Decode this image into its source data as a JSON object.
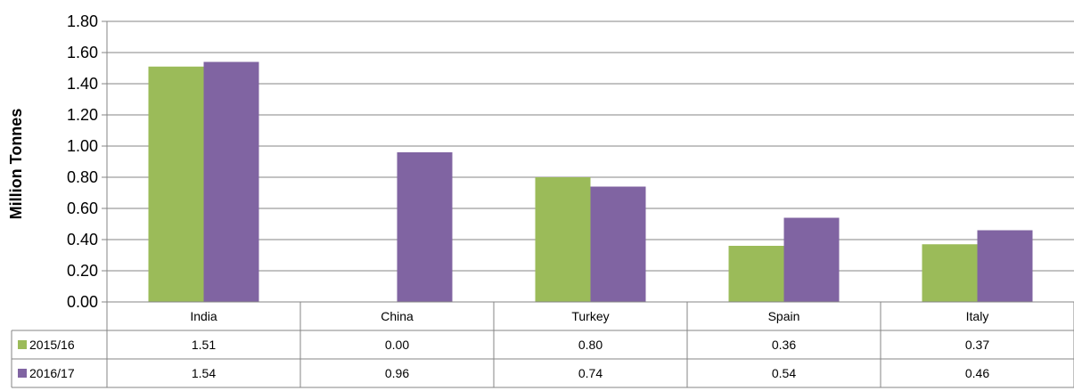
{
  "chart_data": {
    "type": "bar",
    "title": "",
    "xlabel": "",
    "ylabel": "Million Tonnes",
    "ylim": [
      0,
      1.8
    ],
    "yticks": [
      "0.00",
      "0.20",
      "0.40",
      "0.60",
      "0.80",
      "1.00",
      "1.20",
      "1.40",
      "1.60",
      "1.80"
    ],
    "grid": true,
    "legend": "data-table-left",
    "categories": [
      "India",
      "China",
      "Turkey",
      "Spain",
      "Italy"
    ],
    "series": [
      {
        "name": "2015/16",
        "color": "#9bbb59",
        "values": [
          1.51,
          0.0,
          0.8,
          0.36,
          0.37
        ],
        "labels": [
          "1.51",
          "0.00",
          "0.80",
          "0.36",
          "0.37"
        ]
      },
      {
        "name": "2016/17",
        "color": "#8064a2",
        "values": [
          1.54,
          0.96,
          0.74,
          0.54,
          0.46
        ],
        "labels": [
          "1.54",
          "0.96",
          "0.74",
          "0.54",
          "0.46"
        ]
      }
    ]
  }
}
